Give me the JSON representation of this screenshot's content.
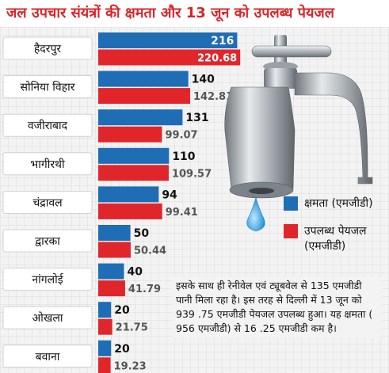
{
  "title": "जल उपचार संयंत्रों की क्षमता और 13 जून को उपलब्ध पेयजल",
  "legend": {
    "capacity": "क्षमता (एमजीडी)",
    "available_line1": "उपलब्ध पेयजल",
    "available_line2": "(एमजीडी)"
  },
  "note": "इसके साथ ही रेनीवेल एवं ट्यूबवेल से 135 एमजीडी पानी मिला रहा है। इस तरह से दिल्ली में 13 जून को 939 .75 एमजीडी पेयजल उपलब्ध हुआ। यह क्षमता ( 956 एमजीडी) से 16 .25 एमजीडी कम है।",
  "colors": {
    "capacity": "#1f6db5",
    "available": "#e0262b",
    "title": "#d8262a"
  },
  "chart_data": {
    "type": "bar",
    "orientation": "horizontal",
    "categories": [
      "हैदरपुर",
      "सोनिया विहार",
      "वजीराबाद",
      "भागीरथी",
      "चंद्रावल",
      "द्वारका",
      "नांगलोई",
      "ओखला",
      "बवाना"
    ],
    "series": [
      {
        "name": "क्षमता (एमजीडी)",
        "values": [
          216,
          140,
          131,
          110,
          94,
          50,
          40,
          20,
          20
        ],
        "labels": [
          "216",
          "140",
          "131",
          "110",
          "94",
          "50",
          "40",
          "20",
          "20"
        ]
      },
      {
        "name": "उपलब्ध पेयजल (एमजीडी)",
        "values": [
          220.68,
          142.81,
          99.07,
          109.57,
          99.41,
          50.44,
          41.79,
          21.75,
          19.23
        ],
        "labels": [
          "220.68",
          "142.81",
          "99.07",
          "109.57",
          "99.41",
          "50.44",
          "41.79",
          "21.75",
          "19.23"
        ]
      }
    ],
    "grid": true,
    "legend": "right"
  }
}
